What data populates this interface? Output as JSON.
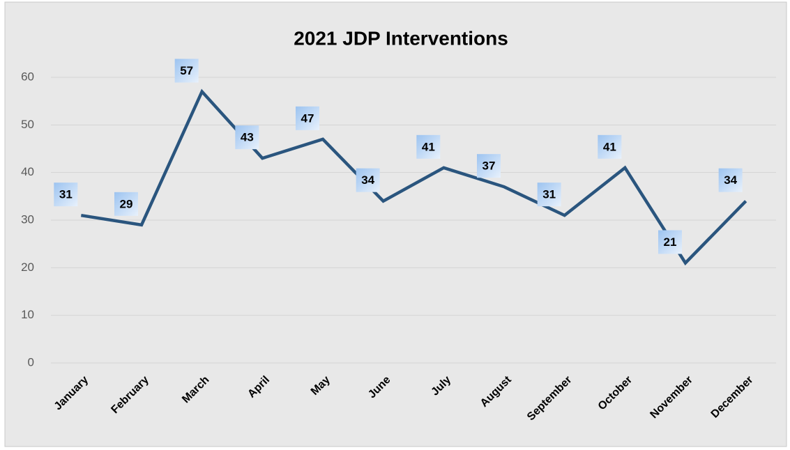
{
  "chart_data": {
    "type": "line",
    "title": "2021 JDP Interventions",
    "categories": [
      "January",
      "February",
      "March",
      "April",
      "May",
      "June",
      "July",
      "August",
      "September",
      "October",
      "November",
      "December"
    ],
    "series": [
      {
        "name": "Interventions",
        "color": "#2a557e",
        "values": [
          31,
          29,
          57,
          43,
          47,
          34,
          41,
          37,
          31,
          41,
          21,
          34
        ]
      }
    ],
    "ylim": [
      0,
      60
    ],
    "yticks": [
      0,
      10,
      20,
      30,
      40,
      50,
      60
    ],
    "grid": true,
    "legend": false
  }
}
